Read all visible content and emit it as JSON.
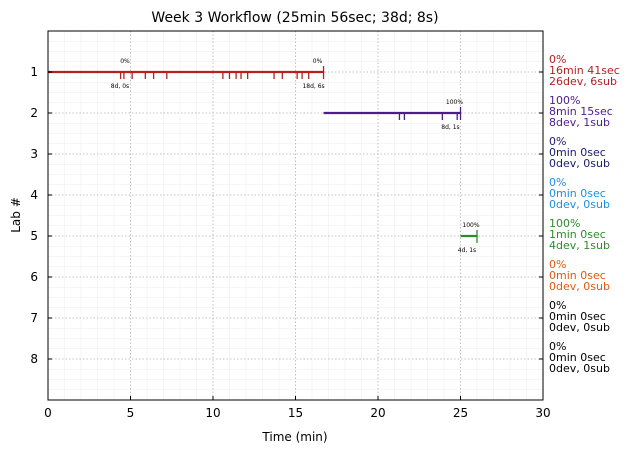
{
  "chart_data": {
    "type": "timeline",
    "title": "Week 3 Workflow (25min 56sec; 38d; 8s)",
    "xlabel": "Time (min)",
    "ylabel": "Lab #",
    "xlim": [
      0,
      30
    ],
    "ylim": [
      0,
      9
    ],
    "x_ticks": [
      0,
      5,
      10,
      15,
      20,
      25,
      30
    ],
    "y_ticks": [
      1,
      2,
      3,
      4,
      5,
      6,
      7,
      8
    ],
    "grid": true,
    "labs": [
      {
        "lab": 1,
        "color": "#b22222",
        "start": 0,
        "end": 16.7,
        "ticks": [
          4.4,
          4.6,
          5.1,
          5.9,
          6.4,
          7.2,
          10.6,
          11.0,
          11.4,
          11.7,
          12.1,
          13.7,
          14.2,
          15.1,
          15.4,
          15.8,
          16.7
        ],
        "start_label": "0%",
        "start_sublabel": "8d, 0s",
        "end_label": "0%",
        "end_sublabel": "18d, 6s",
        "summary": [
          "0%",
          "16min 41sec",
          "26dev, 6sub"
        ]
      },
      {
        "lab": 2,
        "color": "#4b1c8c",
        "start": 16.7,
        "end": 25.0,
        "ticks": [
          21.3,
          21.6,
          23.9,
          24.8,
          25.0
        ],
        "start_label": "",
        "start_sublabel": "",
        "end_label": "100%",
        "end_sublabel": "8d, 1s",
        "summary": [
          "100%",
          "8min 15sec",
          "8dev, 1sub"
        ]
      },
      {
        "lab": 3,
        "color": "#1a1a6e",
        "summary": [
          "0%",
          "0min 0sec",
          "0dev, 0sub"
        ]
      },
      {
        "lab": 4,
        "color": "#1e90e0",
        "summary": [
          "0%",
          "0min 0sec",
          "0dev, 0sub"
        ]
      },
      {
        "lab": 5,
        "color": "#2e8b2e",
        "start": 25.0,
        "end": 26.0,
        "ticks": [
          26.0
        ],
        "start_label": "",
        "start_sublabel": "",
        "end_label": "100%",
        "end_sublabel": "4d, 1s",
        "summary": [
          "100%",
          "1min 0sec",
          "4dev, 1sub"
        ]
      },
      {
        "lab": 6,
        "color": "#e05a10",
        "summary": [
          "0%",
          "0min 0sec",
          "0dev, 0sub"
        ]
      },
      {
        "lab": 7,
        "color": "#000000",
        "summary": [
          "0%",
          "0min 0sec",
          "0dev, 0sub"
        ]
      },
      {
        "lab": 8,
        "color": "#000000",
        "summary": [
          "0%",
          "0min 0sec",
          "0dev, 0sub"
        ]
      }
    ]
  }
}
